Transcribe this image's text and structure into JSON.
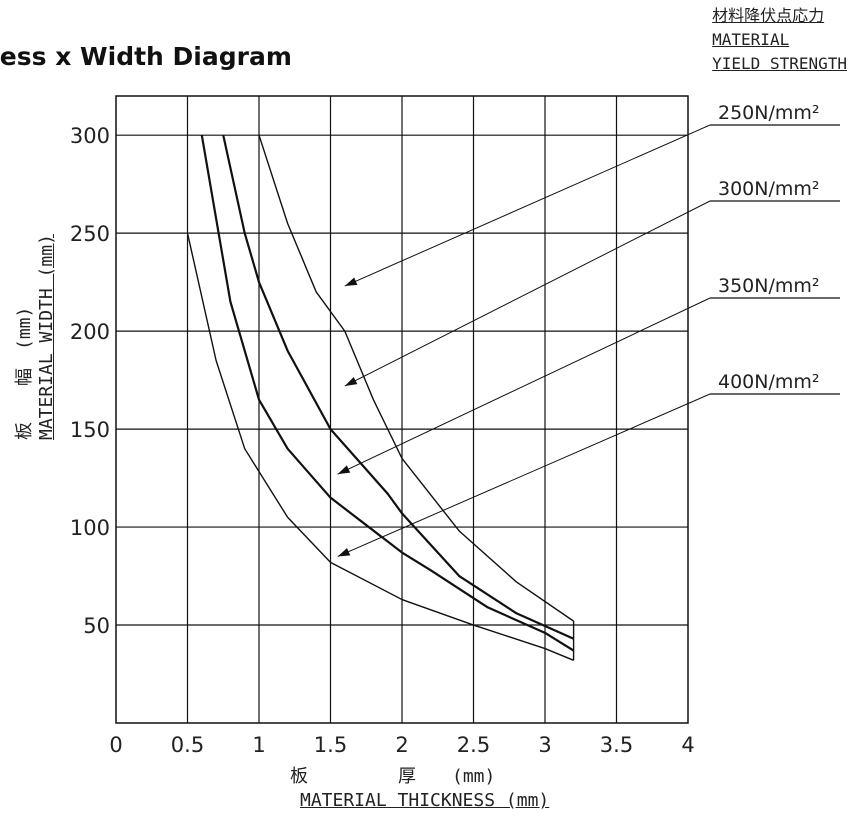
{
  "header": {
    "title": "ness x Width Diagram"
  },
  "legend_header": {
    "jp": "材料降伏点応力",
    "line1": "MATERIAL",
    "line2": "YIELD STRENGTH"
  },
  "axes": {
    "y_label_jp": "板　　幅　(mm)",
    "y_label": "MATERIAL WIDTH (mm)",
    "x_label_jp": "板　　　　　厚　　(mm)",
    "x_label": "MATERIAL THICKNESS (mm)"
  },
  "chart_data": {
    "type": "line",
    "title": "",
    "xlabel": "MATERIAL THICKNESS (mm)",
    "ylabel": "MATERIAL WIDTH (mm)",
    "xlim": [
      0,
      4
    ],
    "ylim": [
      0,
      320
    ],
    "x_ticks": [
      "0",
      "0.5",
      "1",
      "1.5",
      "2",
      "2.5",
      "3",
      "3.5",
      "4"
    ],
    "y_ticks": [
      "50",
      "100",
      "150",
      "200",
      "250",
      "300"
    ],
    "grid": true,
    "series": [
      {
        "name": "250N/mm²",
        "x": [
          1.0,
          1.2,
          1.4,
          1.6,
          1.8,
          2.0,
          2.4,
          2.8,
          3.2
        ],
        "y": [
          300,
          255,
          220,
          200,
          165,
          135,
          98,
          72,
          52
        ]
      },
      {
        "name": "300N/mm²",
        "x": [
          0.75,
          0.9,
          1.0,
          1.2,
          1.5,
          1.9,
          2.0,
          2.4,
          2.8,
          3.2
        ],
        "y": [
          300,
          250,
          225,
          190,
          150,
          117,
          107,
          75,
          56,
          43
        ]
      },
      {
        "name": "350N/mm²",
        "x": [
          0.6,
          0.8,
          1.0,
          1.2,
          1.5,
          2.0,
          2.2,
          2.6,
          3.0,
          3.2
        ],
        "y": [
          300,
          215,
          165,
          140,
          115,
          87,
          78,
          59,
          46,
          37
        ]
      },
      {
        "name": "400N/mm²",
        "x": [
          0.5,
          0.7,
          0.9,
          1.2,
          1.5,
          2.0,
          2.5,
          3.0,
          3.2
        ],
        "y": [
          250,
          185,
          140,
          105,
          82,
          63,
          50,
          38,
          32
        ]
      }
    ],
    "annotations": [
      {
        "series": "250N/mm²",
        "label": "250N/mm²",
        "point_x": 1.6,
        "point_y": 223
      },
      {
        "series": "300N/mm²",
        "label": "300N/mm²",
        "point_x": 1.6,
        "point_y": 172
      },
      {
        "series": "350N/mm²",
        "label": "350N/mm²",
        "point_x": 1.55,
        "point_y": 127
      },
      {
        "series": "400N/mm²",
        "label": "400N/mm²",
        "point_x": 1.55,
        "point_y": 85
      }
    ]
  }
}
